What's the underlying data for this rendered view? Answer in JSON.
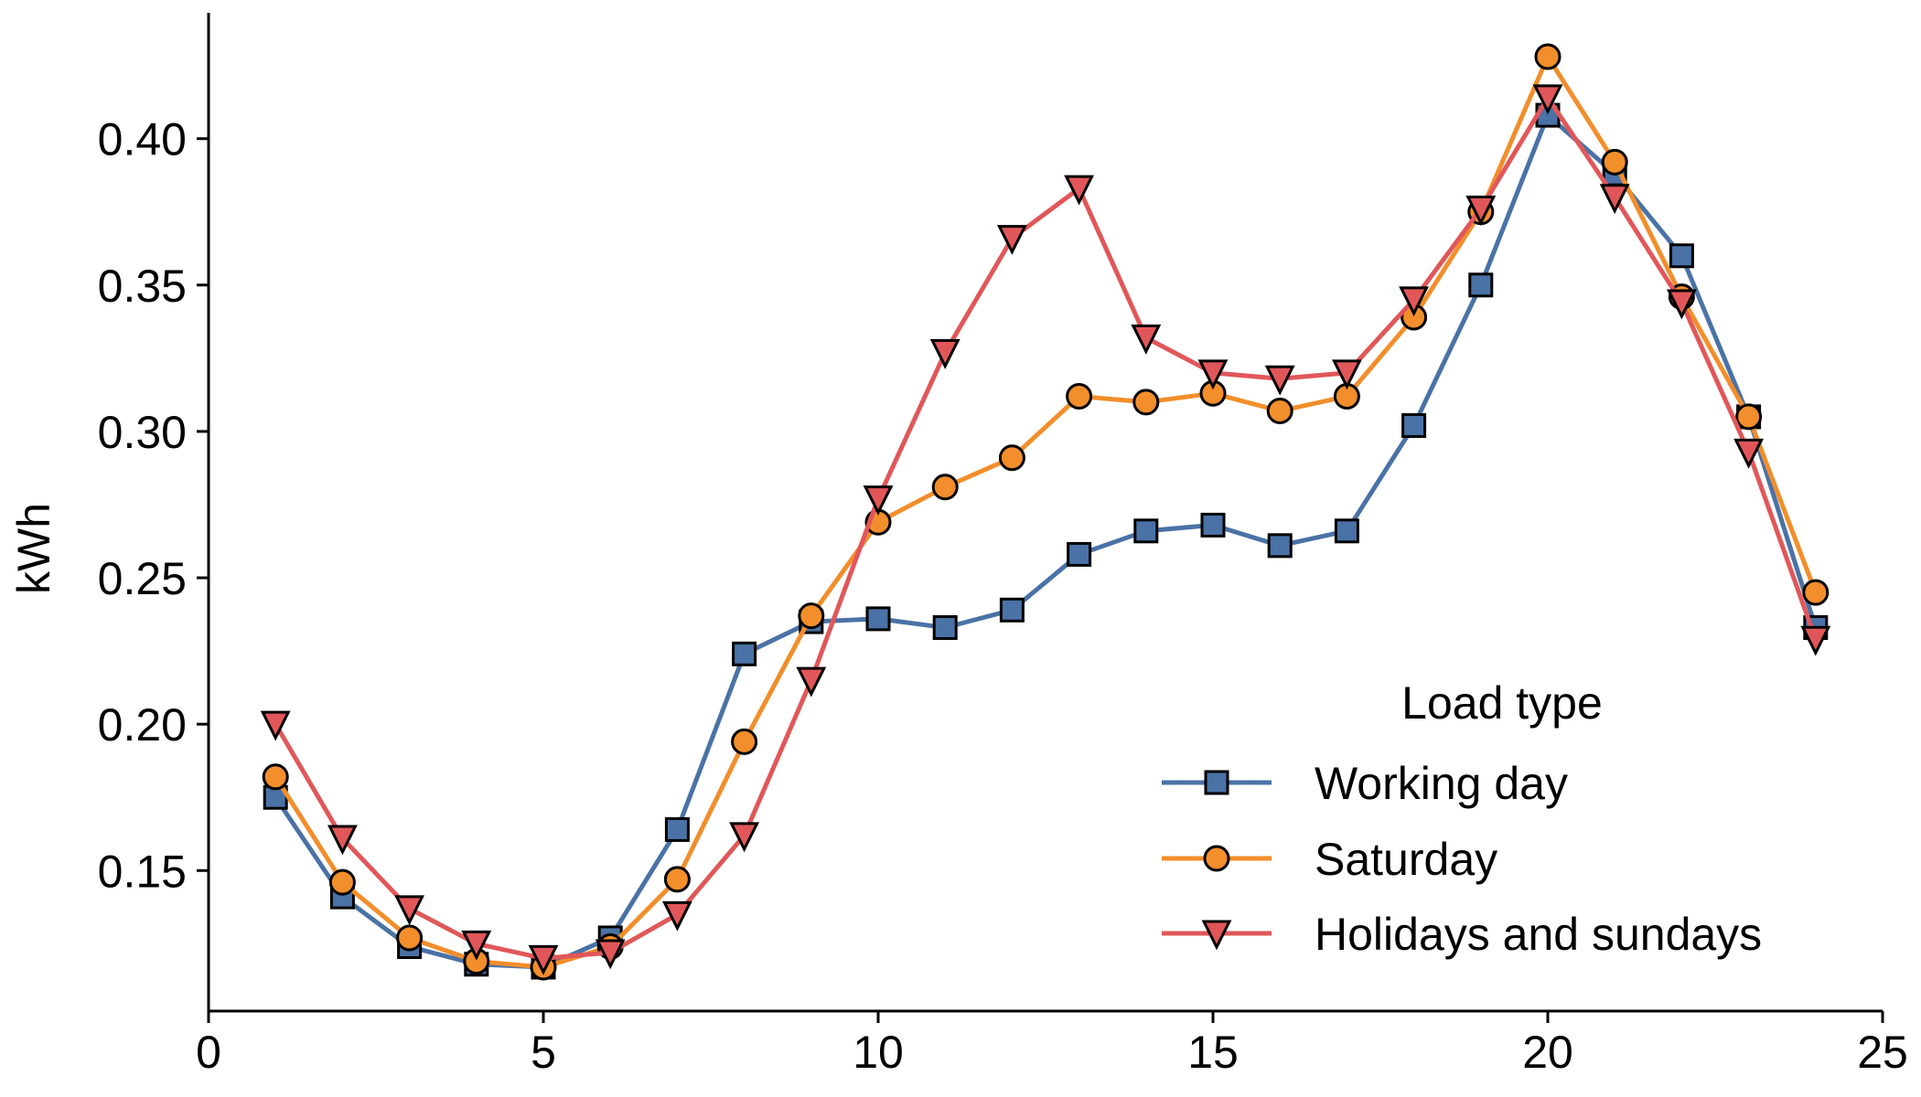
{
  "chart_data": {
    "type": "line",
    "title": "",
    "xlabel": "",
    "ylabel": "kWh",
    "xlim": [
      0,
      25
    ],
    "ylim": [
      0.102,
      0.443
    ],
    "xticks": [
      0,
      5,
      10,
      15,
      20,
      25
    ],
    "yticks": [
      0.15,
      0.2,
      0.25,
      0.3,
      0.35,
      0.4
    ],
    "grid": false,
    "legend": {
      "title": "Load type",
      "placement": "lower-right"
    },
    "x": [
      1,
      2,
      3,
      4,
      5,
      6,
      7,
      8,
      9,
      10,
      11,
      12,
      13,
      14,
      15,
      16,
      17,
      18,
      19,
      20,
      21,
      22,
      23,
      24
    ],
    "series": [
      {
        "name": "Working day",
        "color": "#4a72a6",
        "marker": "square",
        "values": [
          0.175,
          0.141,
          0.124,
          0.118,
          0.117,
          0.127,
          0.164,
          0.224,
          0.235,
          0.236,
          0.233,
          0.239,
          0.258,
          0.266,
          0.268,
          0.261,
          0.266,
          0.302,
          0.35,
          0.408,
          0.388,
          0.36,
          0.305,
          0.233
        ]
      },
      {
        "name": "Saturday",
        "color": "#f28e2b",
        "marker": "circle",
        "values": [
          0.182,
          0.146,
          0.127,
          0.119,
          0.117,
          0.124,
          0.147,
          0.194,
          0.237,
          0.269,
          0.281,
          0.291,
          0.312,
          0.31,
          0.313,
          0.307,
          0.312,
          0.339,
          0.375,
          0.428,
          0.392,
          0.346,
          0.305,
          0.245
        ]
      },
      {
        "name": "Holidays and sundays",
        "color": "#e15759",
        "marker": "triangle-down",
        "values": [
          0.2,
          0.161,
          0.137,
          0.125,
          0.12,
          0.122,
          0.135,
          0.162,
          0.215,
          0.277,
          0.327,
          0.366,
          0.383,
          0.332,
          0.32,
          0.318,
          0.32,
          0.345,
          0.376,
          0.414,
          0.38,
          0.344,
          0.293,
          0.229
        ]
      }
    ]
  }
}
